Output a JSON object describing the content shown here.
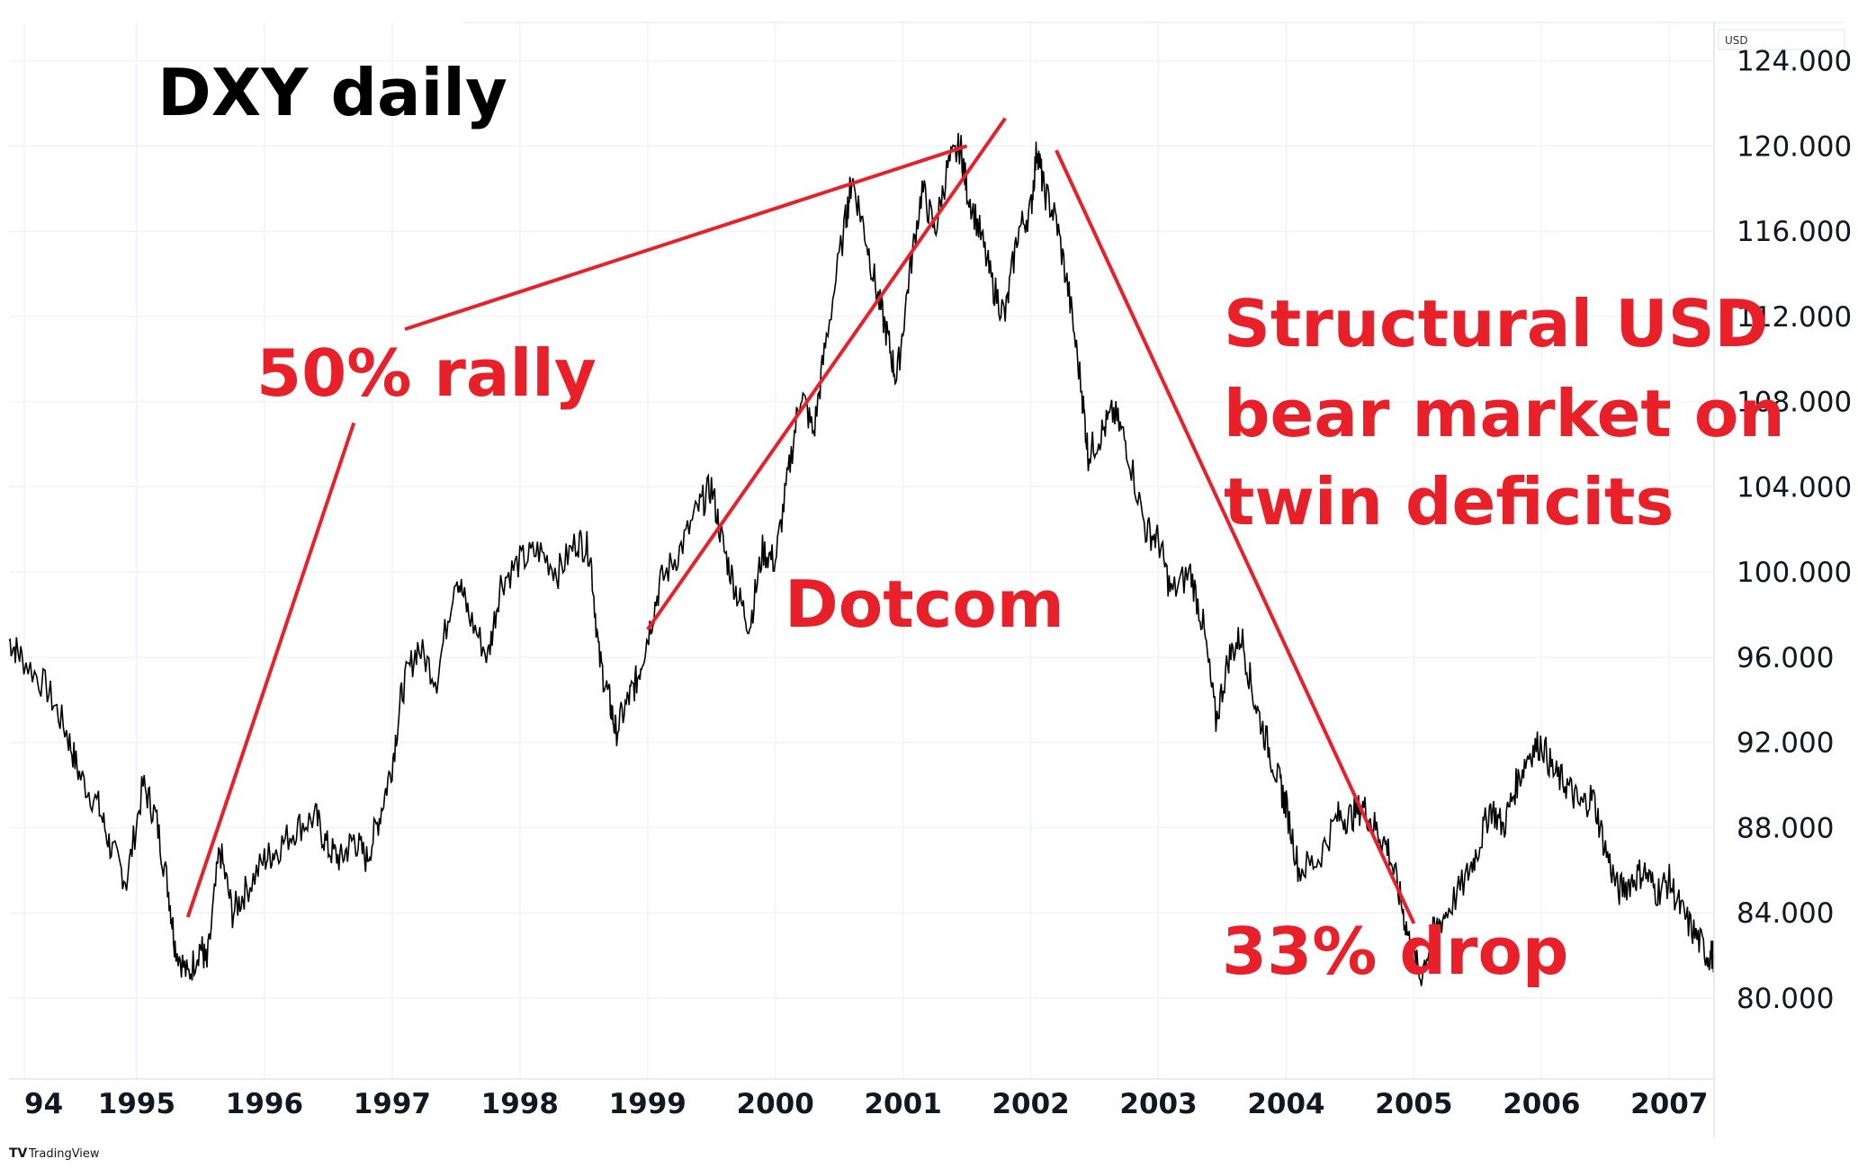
{
  "chart_data": {
    "type": "line",
    "title": "DXY daily",
    "unit_label": "USD",
    "watermark": "TradingView",
    "y_axis": {
      "min": 76.2,
      "max": 125.8,
      "ticks": [
        "124.000",
        "120.000",
        "116.000",
        "112.000",
        "108.000",
        "104.000",
        "100.000",
        "96.000",
        "92.000",
        "88.000",
        "84.000",
        "80.000"
      ],
      "tick_values": [
        124,
        120,
        116,
        112,
        108,
        104,
        100,
        96,
        92,
        88,
        84,
        80
      ],
      "position": "right",
      "grid": true
    },
    "x_axis": {
      "min": 1994.0,
      "max": 2007.35,
      "ticks": [
        "94",
        "1995",
        "1996",
        "1997",
        "1998",
        "1999",
        "2000",
        "2001",
        "2002",
        "2003",
        "2004",
        "2005",
        "2006",
        "2007"
      ],
      "tick_values": [
        1994.12,
        1995.0,
        1996.0,
        1997.0,
        1998.0,
        1999.0,
        2000.0,
        2001.0,
        2002.0,
        2003.0,
        2004.0,
        2005.0,
        2006.0,
        2007.0
      ],
      "grid": true
    },
    "series": [
      {
        "color": "#000000",
        "x": [
          1994.0,
          1994.1,
          1994.3,
          1994.45,
          1994.55,
          1994.7,
          1994.8,
          1994.92,
          1995.05,
          1995.15,
          1995.25,
          1995.3,
          1995.4,
          1995.5,
          1995.55,
          1995.65,
          1995.75,
          1995.85,
          1996.0,
          1996.1,
          1996.25,
          1996.4,
          1996.5,
          1996.6,
          1996.7,
          1996.8,
          1996.9,
          1997.0,
          1997.08,
          1997.2,
          1997.35,
          1997.5,
          1997.6,
          1997.75,
          1997.85,
          1998.0,
          1998.15,
          1998.3,
          1998.45,
          1998.55,
          1998.62,
          1998.7,
          1998.75,
          1998.85,
          1998.92,
          1999.0,
          1999.1,
          1999.25,
          1999.4,
          1999.5,
          1999.6,
          1999.7,
          1999.8,
          1999.9,
          2000.0,
          2000.1,
          2000.2,
          2000.3,
          2000.4,
          2000.55,
          2000.6,
          2000.7,
          2000.8,
          2000.88,
          2000.95,
          2001.05,
          2001.15,
          2001.25,
          2001.35,
          2001.45,
          2001.5,
          2001.6,
          2001.7,
          2001.8,
          2001.9,
          2002.0,
          2002.05,
          2002.1,
          2002.2,
          2002.3,
          2002.4,
          2002.45,
          2002.55,
          2002.65,
          2002.75,
          2002.9,
          2003.0,
          2003.1,
          2003.25,
          2003.35,
          2003.45,
          2003.55,
          2003.65,
          2003.75,
          2003.85,
          2003.95,
          2004.0,
          2004.1,
          2004.25,
          2004.4,
          2004.5,
          2004.6,
          2004.7,
          2004.8,
          2004.9,
          2004.97,
          2005.05,
          2005.15,
          2005.25,
          2005.4,
          2005.5,
          2005.6,
          2005.7,
          2005.8,
          2005.9,
          2006.0,
          2006.1,
          2006.2,
          2006.3,
          2006.4,
          2006.5,
          2006.6,
          2006.7,
          2006.8,
          2006.9,
          2007.0,
          2007.1,
          2007.2,
          2007.3,
          2007.35
        ],
        "y": [
          96.8,
          96.0,
          94.5,
          92.5,
          90.5,
          89.0,
          87.0,
          85.5,
          90.0,
          88.5,
          85.0,
          82.5,
          81.0,
          82.5,
          81.5,
          87.0,
          84.0,
          85.0,
          86.5,
          87.0,
          88.0,
          88.5,
          87.0,
          86.5,
          87.5,
          86.5,
          88.5,
          91.0,
          94.5,
          96.5,
          95.0,
          100.0,
          98.0,
          96.0,
          99.5,
          100.5,
          101.0,
          100.0,
          101.5,
          101.0,
          96.0,
          94.0,
          92.5,
          94.0,
          95.0,
          97.0,
          99.5,
          101.0,
          103.0,
          104.0,
          101.0,
          99.0,
          97.5,
          101.0,
          100.5,
          104.5,
          108.5,
          106.5,
          111.0,
          116.5,
          118.5,
          116.0,
          113.0,
          111.0,
          109.0,
          114.0,
          118.0,
          116.0,
          119.0,
          120.0,
          118.0,
          116.0,
          113.5,
          112.0,
          116.0,
          117.0,
          120.0,
          118.0,
          116.5,
          113.0,
          108.5,
          105.5,
          106.5,
          107.5,
          106.0,
          102.0,
          101.5,
          99.0,
          100.0,
          97.5,
          93.0,
          96.0,
          97.0,
          94.0,
          92.0,
          90.0,
          89.0,
          86.0,
          86.5,
          88.5,
          88.5,
          89.0,
          88.0,
          87.0,
          84.5,
          82.5,
          81.0,
          83.0,
          84.0,
          85.5,
          87.0,
          89.0,
          88.0,
          90.0,
          91.5,
          92.0,
          90.5,
          90.0,
          89.0,
          89.5,
          87.0,
          85.0,
          85.5,
          86.0,
          85.0,
          85.5,
          84.0,
          83.0,
          82.0,
          82.0
        ]
      }
    ],
    "trendlines": [
      {
        "x1": 1995.4,
        "y1": 83.8,
        "x2": 1996.7,
        "y2": 107.0
      },
      {
        "x1": 1997.1,
        "y1": 111.4,
        "x2": 2001.5,
        "y2": 120.0
      },
      {
        "x1": 1999.0,
        "y1": 97.3,
        "x2": 2001.8,
        "y2": 121.3
      },
      {
        "x1": 2002.2,
        "y1": 119.8,
        "x2": 2005.0,
        "y2": 83.5
      }
    ],
    "annotations": [
      "DXY daily",
      "50% rally",
      "Dotcom",
      "Structural USD",
      "bear market on",
      "twin deficits",
      "33% drop"
    ],
    "annotation_color": "#e8202a"
  }
}
